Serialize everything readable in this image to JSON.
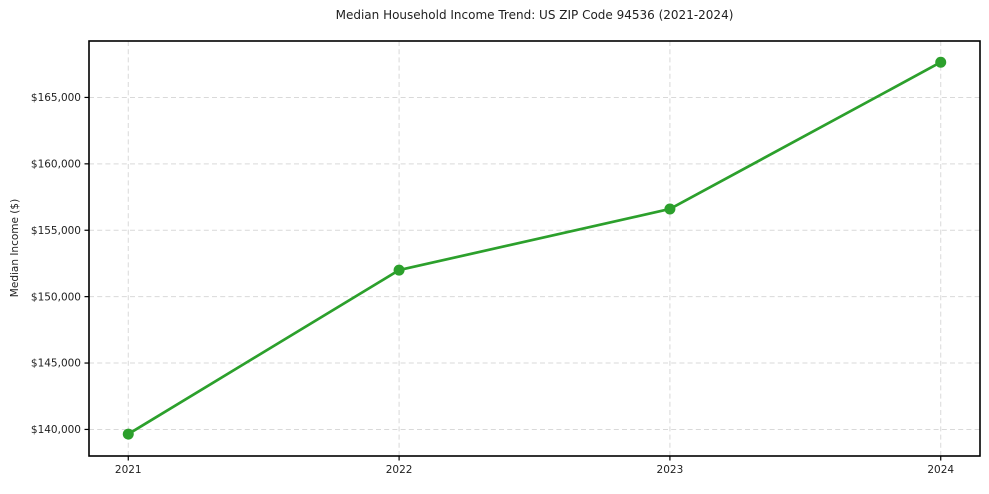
{
  "page": {
    "background": "#ffffff"
  },
  "chart_data": {
    "type": "line",
    "title": "Median Household Income Trend: US ZIP Code 94536 (2021-2024)",
    "xlabel": "",
    "ylabel": "Median Income ($)",
    "x": [
      2021,
      2022,
      2023,
      2024
    ],
    "series": [
      {
        "name": "Median Household Income",
        "values": [
          139650,
          152000,
          156600,
          167650
        ]
      }
    ],
    "x_tick_labels": [
      "2021",
      "2022",
      "2023",
      "2024"
    ],
    "y_ticks": [
      140000,
      145000,
      150000,
      155000,
      160000,
      165000
    ],
    "y_tick_labels": [
      "$140,000",
      "$145,000",
      "$150,000",
      "$155,000",
      "$160,000",
      "$165,000"
    ],
    "xlim": [
      2020.855,
      2024.145
    ],
    "ylim": [
      138000,
      169250
    ],
    "grid": true,
    "grid_style": "dashed",
    "legend": false,
    "line_color": "#2ca02c",
    "marker": "circle",
    "grid_color": "#d9d9d9",
    "axis_color": "#000000",
    "text_color": "#1f1f1f"
  }
}
